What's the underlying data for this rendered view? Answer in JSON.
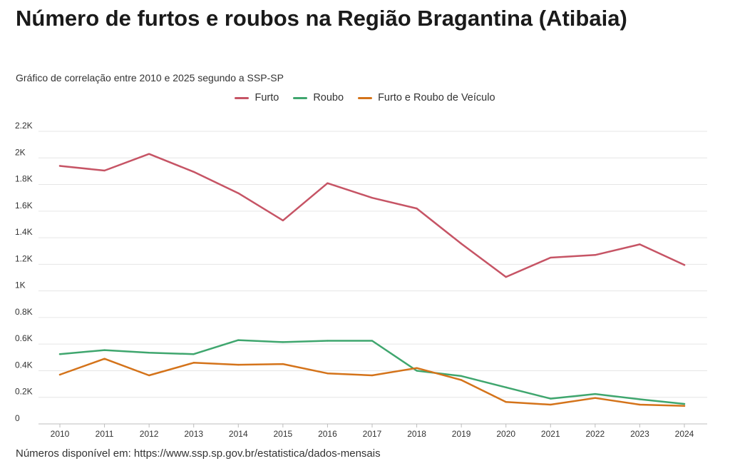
{
  "title": "Número de furtos e roubos na Região Bragantina (Atibaia)",
  "subtitle": "Gráfico de correlação entre 2010 e 2025 segundo a SSP-SP",
  "source": "Números disponível em: https://www.ssp.sp.gov.br/estatistica/dados-mensais",
  "chart_data": {
    "type": "line",
    "title": "Número de furtos e roubos na Região Bragantina (Atibaia)",
    "subtitle": "Gráfico de correlação entre 2010 e 2025 segundo a SSP-SP",
    "xlabel": "",
    "ylabel": "",
    "x": [
      "2010",
      "2011",
      "2012",
      "2013",
      "2014",
      "2015",
      "2016",
      "2017",
      "2018",
      "2019",
      "2020",
      "2021",
      "2022",
      "2023",
      "2024"
    ],
    "y_ticks": [
      0,
      200,
      400,
      600,
      800,
      1000,
      1200,
      1400,
      1600,
      1800,
      2000,
      2200
    ],
    "y_tick_labels": [
      "0",
      "0.2K",
      "0.4K",
      "0.6K",
      "0.8K",
      "1K",
      "1.2K",
      "1.4K",
      "1.6K",
      "1.8K",
      "2K",
      "2.2K"
    ],
    "ylim": [
      0,
      2200
    ],
    "grid": true,
    "legend_position": "top-center",
    "series": [
      {
        "name": "Furto",
        "color": "#c65465",
        "values": [
          1940,
          1905,
          2030,
          1895,
          1735,
          1530,
          1810,
          1700,
          1620,
          1355,
          1105,
          1250,
          1270,
          1350,
          1195
        ]
      },
      {
        "name": "Roubo",
        "color": "#3fa66e",
        "values": [
          525,
          555,
          535,
          525,
          630,
          615,
          625,
          625,
          400,
          360,
          275,
          190,
          225,
          185,
          150
        ]
      },
      {
        "name": "Furto e Roubo de Veículo",
        "color": "#d4731a",
        "values": [
          370,
          490,
          365,
          460,
          445,
          450,
          380,
          365,
          420,
          330,
          165,
          145,
          195,
          145,
          135
        ]
      }
    ]
  }
}
